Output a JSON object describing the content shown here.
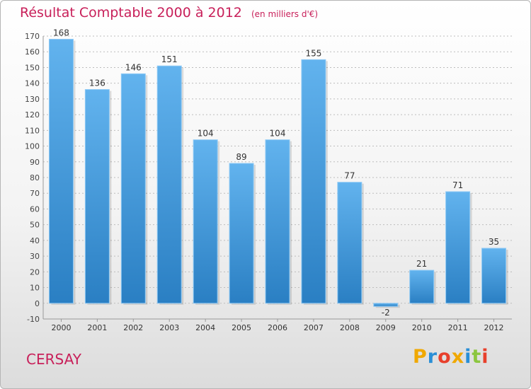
{
  "header": {
    "title": "Résultat Comptable 2000 à 2012",
    "subtitle": "(en milliers d'€)"
  },
  "footer": {
    "commune": "CERSAY",
    "logo_text": "Proxiti",
    "logo_colors": [
      "#f0a800",
      "#2a8fd6",
      "#e8402c",
      "#f0a800",
      "#2a8fd6",
      "#8cc63f",
      "#e8402c"
    ]
  },
  "colors": {
    "accent": "#c8205a",
    "bar_top": "#62b3ee",
    "bar_bottom": "#2a7fc3",
    "grid": "#bdbdbd"
  },
  "chart_data": {
    "type": "bar",
    "title": "Résultat Comptable 2000 à 2012",
    "categories": [
      "2000",
      "2001",
      "2002",
      "2003",
      "2004",
      "2005",
      "2006",
      "2007",
      "2008",
      "2009",
      "2010",
      "2011",
      "2012"
    ],
    "values": [
      168,
      136,
      146,
      151,
      104,
      89,
      104,
      155,
      77,
      -2,
      21,
      71,
      35
    ],
    "ylim": [
      -10,
      170
    ],
    "yticks": [
      -10,
      0,
      10,
      20,
      30,
      40,
      50,
      60,
      70,
      80,
      90,
      100,
      110,
      120,
      130,
      140,
      150,
      160,
      170
    ],
    "grid": true,
    "xlabel": "",
    "ylabel": ""
  }
}
